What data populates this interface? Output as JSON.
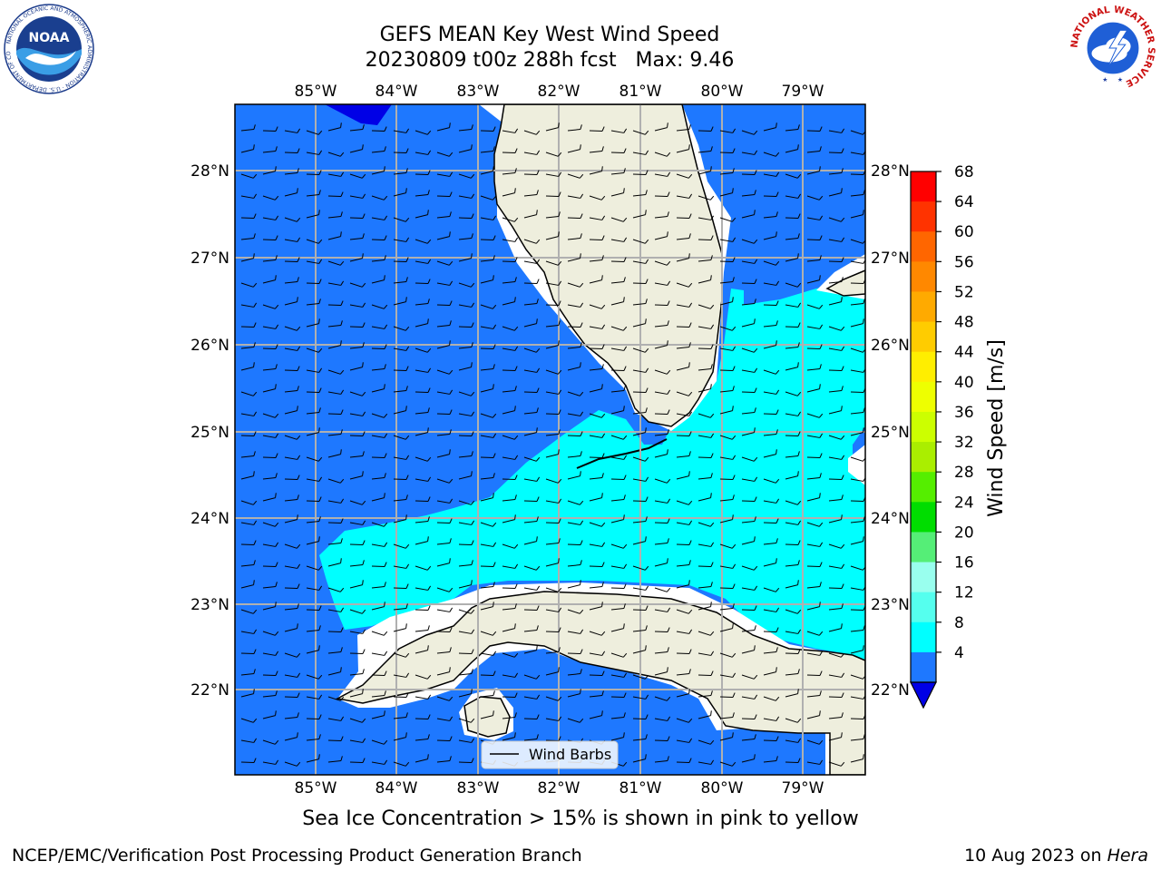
{
  "title": {
    "line1": "GEFS MEAN Key West Wind Speed",
    "line2": "20230809 t00z 288h fcst   Max: 9.46"
  },
  "logos": {
    "noaa_text": "NOAA",
    "noaa_ring": "NATIONAL OCEANIC AND ATMOSPHERIC ADMINISTRATION · U.S. DEPARTMENT OF COMMERCE",
    "nws_ring": "NATIONAL WEATHER SERVICE"
  },
  "map": {
    "lon_labels": [
      "85°W",
      "84°W",
      "83°W",
      "82°W",
      "81°W",
      "80°W",
      "79°W"
    ],
    "lat_labels": [
      "28°N",
      "27°N",
      "26°N",
      "25°N",
      "24°N",
      "23°N",
      "22°N"
    ],
    "legend_label": "Wind Barbs",
    "colors": {
      "ocean_low": "#1E78FF",
      "ocean_mid": "#00FFFF",
      "land": "#EEEEDD",
      "grid": "#B0B0B0",
      "deep_blue": "#0000E6"
    }
  },
  "colorbar": {
    "label": "Wind Speed [m/s]",
    "ticks": [
      "68",
      "64",
      "60",
      "56",
      "52",
      "48",
      "44",
      "40",
      "36",
      "32",
      "28",
      "24",
      "20",
      "16",
      "12",
      "8",
      "4"
    ],
    "colors": [
      "#FF0000",
      "#FF3300",
      "#FF6600",
      "#FF8800",
      "#FFAA00",
      "#FFCC00",
      "#FFEE00",
      "#EEFF00",
      "#CCFF00",
      "#AAEE00",
      "#55EE00",
      "#00DD00",
      "#55EE77",
      "#99FFEE",
      "#55FFEE",
      "#00FFFF",
      "#1E78FF"
    ],
    "extend_color": "#0000E6"
  },
  "caption": "Sea Ice Concentration > 15% is shown in pink to yellow",
  "footer": {
    "left": "NCEP/EMC/Verification Post Processing Product Generation Branch",
    "right_prefix": "10 Aug 2023 on ",
    "right_host": "Hera"
  }
}
